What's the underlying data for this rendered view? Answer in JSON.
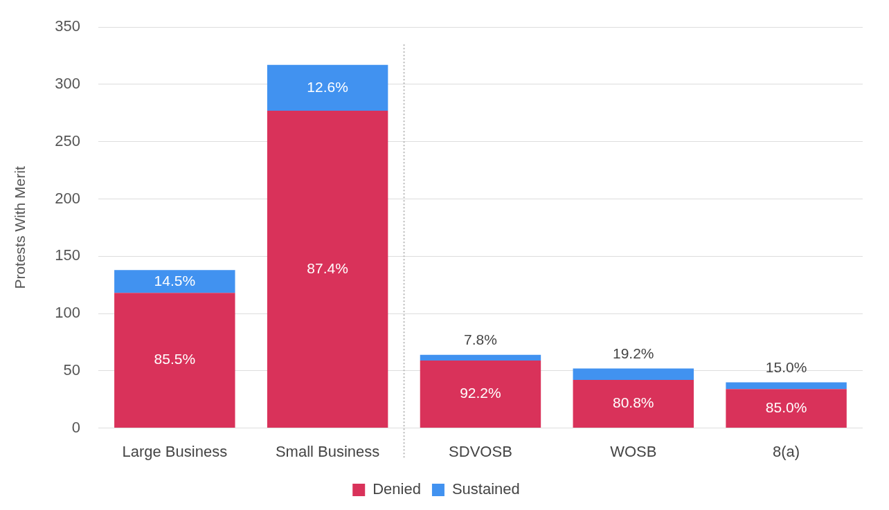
{
  "chart_data": {
    "type": "bar",
    "y_label": "Protests With Merit",
    "categories": [
      "Large Business",
      "Small Business",
      "SDVOSB",
      "WOSB",
      "8(a)"
    ],
    "series": [
      {
        "name": "Denied",
        "color": "#d9325a",
        "values": [
          118,
          277,
          59,
          42,
          34
        ],
        "share_labels": [
          "85.5%",
          "87.4%",
          "92.2%",
          "80.8%",
          "85.0%"
        ]
      },
      {
        "name": "Sustained",
        "color": "#4192f0",
        "values": [
          20,
          40,
          5,
          10,
          6
        ],
        "share_labels": [
          "14.5%",
          "12.6%",
          "7.8%",
          "19.2%",
          "15.0%"
        ]
      }
    ],
    "ylim": [
      0,
      350
    ],
    "yticks": [
      0,
      50,
      100,
      150,
      200,
      250,
      300,
      350
    ],
    "stacked": true,
    "grid": true,
    "legend": "bottom"
  }
}
